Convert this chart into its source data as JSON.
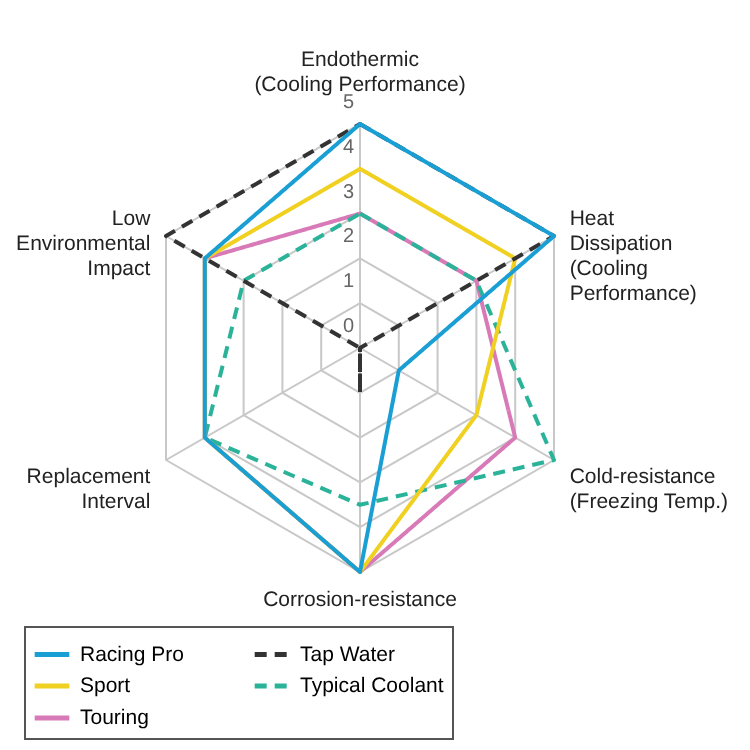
{
  "chart_data": {
    "type": "radar",
    "categories": [
      "Endothermic\n(Cooling Performance)",
      "Heat\nDissipation\n(Cooling\nPerformance)",
      "Cold-resistance\n(Freezing Temp.)",
      "Corrosion-resistance",
      "Replacement\nInterval",
      "Low\nEnvironmental\nImpact"
    ],
    "series": [
      {
        "name": "Racing Pro",
        "color": "#1a9fd4",
        "line_style": "solid",
        "values": [
          5,
          5,
          1,
          5,
          4,
          4
        ]
      },
      {
        "name": "Tap Water",
        "color": "#333333",
        "line_style": "dashed",
        "values": [
          5,
          5,
          0,
          1,
          0,
          5
        ]
      },
      {
        "name": "Sport",
        "color": "#f0d020",
        "line_style": "solid",
        "values": [
          4,
          4,
          3,
          5,
          4,
          4
        ]
      },
      {
        "name": "Typical Coolant",
        "color": "#2bb39a",
        "line_style": "dashed",
        "values": [
          3,
          3,
          5,
          3.5,
          4,
          3
        ]
      },
      {
        "name": "Touring",
        "color": "#d97ab8",
        "line_style": "solid",
        "values": [
          3,
          3,
          4,
          5,
          4,
          4
        ]
      }
    ],
    "ylim": [
      0,
      5
    ],
    "yticks": [
      0,
      1,
      2,
      3,
      4,
      5
    ],
    "grid": true,
    "legend": "bottom",
    "marker": "none"
  }
}
